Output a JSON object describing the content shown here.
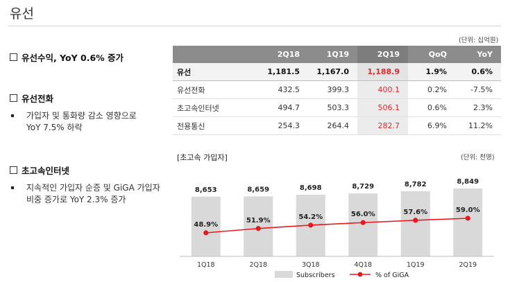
{
  "page": {
    "title": "유선"
  },
  "left": {
    "sections": [
      {
        "heading": "유선수익, YoY 0.6% 증가",
        "bullets": []
      },
      {
        "heading": "유선전화",
        "bullets": [
          {
            "line1": "가입자 및 통화량 감소 영향으로",
            "line2": "YoY 7.5% 하락"
          }
        ]
      },
      {
        "heading": "초고속인터넷",
        "bullets": [
          {
            "line1": "지속적인 가입자 순증 및 GiGA 가입자",
            "line2": "비중 증가로 YoY 2.3% 증가"
          }
        ]
      }
    ]
  },
  "table": {
    "unit": "(단위: 십억원)",
    "headers": [
      "",
      "2Q18",
      "1Q19",
      "2Q19",
      "QoQ",
      "YoY"
    ],
    "rows": [
      {
        "label": "유선",
        "cells": [
          "1,181.5",
          "1,167.0",
          "1,188.9",
          "1.9%",
          "0.6%"
        ]
      },
      {
        "label": "유선전화",
        "cells": [
          "432.5",
          "399.3",
          "400.1",
          "0.2%",
          "-7.5%"
        ]
      },
      {
        "label": "초고속인터넷",
        "cells": [
          "494.7",
          "503.3",
          "506.1",
          "0.6%",
          "2.3%"
        ]
      },
      {
        "label": "전용통신",
        "cells": [
          "254.3",
          "264.4",
          "282.7",
          "6.9%",
          "11.2%"
        ]
      }
    ],
    "highlight_color": "#e8272a"
  },
  "chart_title": "[초고속 가입자]",
  "chart_unit": "(단위: 천명)",
  "chart_data": {
    "type": "bar+line",
    "categories": [
      "1Q18",
      "2Q18",
      "3Q18",
      "4Q18",
      "1Q19",
      "2Q19"
    ],
    "series": [
      {
        "name": "Subscribers",
        "kind": "bar",
        "values": [
          8653,
          8659,
          8698,
          8729,
          8782,
          8849
        ],
        "labels": [
          "8,653",
          "8,659",
          "8,698",
          "8,729",
          "8,782",
          "8,849"
        ],
        "color": "#d9d9d9"
      },
      {
        "name": "% of GiGA",
        "kind": "line",
        "values": [
          48.9,
          51.9,
          54.2,
          56.0,
          57.6,
          59.0
        ],
        "labels": [
          "48.9%",
          "51.9%",
          "54.2%",
          "56.0%",
          "57.6%",
          "59.0%"
        ],
        "color": "#e8191e"
      }
    ],
    "legend": "bottom-center"
  }
}
